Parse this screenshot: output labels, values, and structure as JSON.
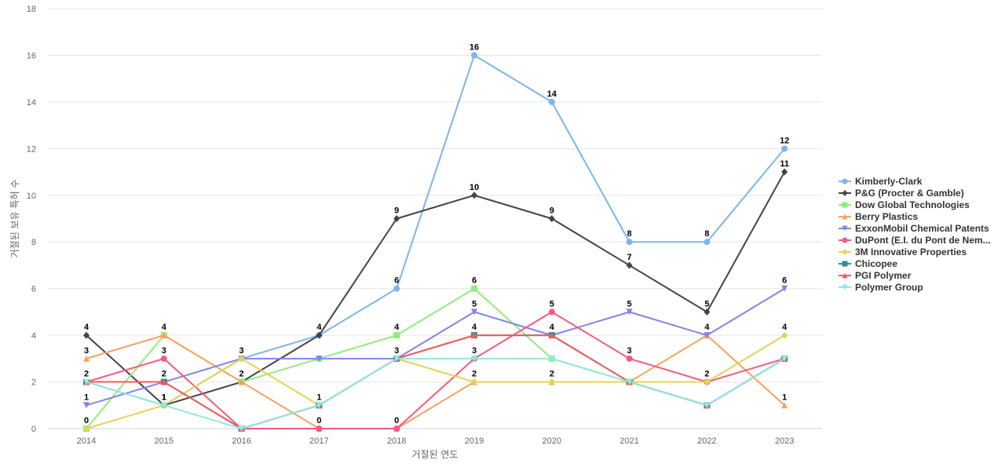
{
  "chart_data": {
    "type": "line",
    "xlabel": "거절된 연도",
    "ylabel": "거절된 보유 특허 수",
    "x": [
      "2014",
      "2015",
      "2016",
      "2017",
      "2018",
      "2019",
      "2020",
      "2021",
      "2022",
      "2023"
    ],
    "ylim": [
      0,
      18
    ],
    "yticks": [
      0,
      2,
      4,
      6,
      8,
      10,
      12,
      14,
      16,
      18
    ],
    "grid": true,
    "legend_position": "right",
    "series": [
      {
        "name": "Kimberly-Clark",
        "color": "#7cb5ec",
        "marker": "circle",
        "values": [
          2,
          1,
          3,
          4,
          6,
          16,
          14,
          8,
          8,
          12
        ],
        "labeled": [
          false,
          false,
          false,
          false,
          true,
          true,
          true,
          true,
          true,
          true
        ]
      },
      {
        "name": "P&G (Procter & Gamble)",
        "color": "#434348",
        "marker": "diamond",
        "values": [
          4,
          1,
          2,
          4,
          9,
          10,
          9,
          7,
          5,
          11
        ],
        "labeled": [
          true,
          true,
          false,
          true,
          true,
          true,
          true,
          true,
          true,
          true
        ]
      },
      {
        "name": "Dow Global Technologies",
        "color": "#90ed7d",
        "marker": "square",
        "values": [
          0,
          4,
          2,
          3,
          4,
          6,
          3,
          2,
          1,
          3
        ],
        "labeled": [
          false,
          false,
          false,
          false,
          true,
          true,
          false,
          false,
          false,
          false
        ]
      },
      {
        "name": "Berry Plastics",
        "color": "#f7a35c",
        "marker": "triangle",
        "values": [
          3,
          4,
          2,
          0,
          0,
          2,
          2,
          2,
          4,
          1
        ],
        "labeled": [
          true,
          true,
          true,
          false,
          false,
          true,
          true,
          false,
          true,
          true
        ]
      },
      {
        "name": "ExxonMobil Chemical Patents",
        "color": "#8085e9",
        "marker": "triangle-down",
        "values": [
          1,
          2,
          3,
          3,
          3,
          5,
          4,
          5,
          4,
          6
        ],
        "labeled": [
          true,
          false,
          false,
          false,
          false,
          true,
          false,
          true,
          false,
          true
        ]
      },
      {
        "name": "DuPont (E.I. du Pont de Nem...",
        "color": "#f15c80",
        "marker": "circle",
        "values": [
          2,
          3,
          0,
          0,
          0,
          3,
          5,
          3,
          2,
          3
        ],
        "labeled": [
          false,
          true,
          false,
          true,
          true,
          true,
          true,
          true,
          true,
          false
        ]
      },
      {
        "name": "3M Innovative Properties",
        "color": "#e4d354",
        "marker": "diamond",
        "values": [
          0,
          1,
          3,
          1,
          3,
          2,
          2,
          2,
          2,
          4
        ],
        "labeled": [
          true,
          true,
          true,
          true,
          false,
          false,
          false,
          false,
          false,
          true
        ]
      },
      {
        "name": "Chicopee",
        "color": "#2b908f",
        "marker": "square",
        "values": [
          2,
          2,
          0,
          1,
          3,
          4,
          4,
          2,
          1,
          3
        ],
        "labeled": [
          true,
          true,
          false,
          false,
          true,
          true,
          true,
          false,
          false,
          false
        ]
      },
      {
        "name": "PGI Polymer",
        "color": "#f45b5b",
        "marker": "triangle",
        "values": [
          2,
          2,
          0,
          1,
          3,
          4,
          4,
          2,
          1,
          3
        ],
        "labeled": [
          false,
          false,
          false,
          false,
          false,
          false,
          false,
          false,
          false,
          false
        ]
      },
      {
        "name": "Polymer Group",
        "color": "#91e8e1",
        "marker": "triangle-down",
        "values": [
          2,
          1,
          0,
          1,
          3,
          3,
          3,
          2,
          1,
          3
        ],
        "labeled": [
          false,
          false,
          false,
          false,
          false,
          false,
          false,
          false,
          false,
          false
        ]
      }
    ]
  }
}
